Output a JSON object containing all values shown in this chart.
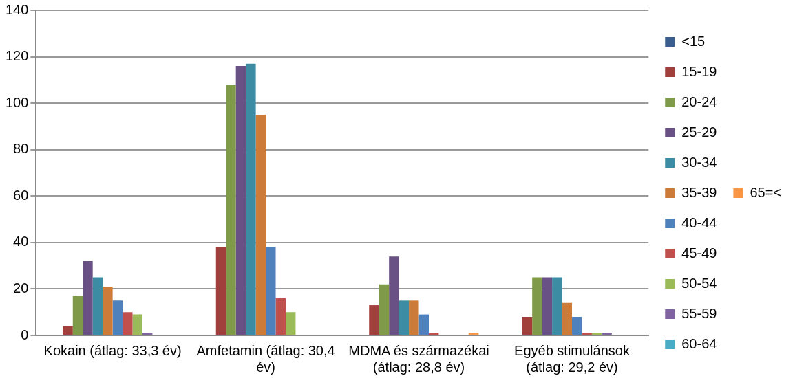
{
  "chart_data": {
    "type": "bar",
    "categories": [
      "Kokain (átlag: 33,3 év)",
      "Amfetamin (átlag: 30,4 év)",
      "MDMA és származékai (átlag: 28,8 év)",
      "Egyéb stimulánsok (átlag: 29,2 év)"
    ],
    "series": [
      {
        "name": "<15",
        "color": "#3a5f8f",
        "values": [
          0,
          0,
          0,
          0
        ]
      },
      {
        "name": "15-19",
        "color": "#a03f3c",
        "values": [
          4,
          38,
          13,
          8
        ]
      },
      {
        "name": "20-24",
        "color": "#7f9a48",
        "values": [
          17,
          108,
          22,
          25
        ]
      },
      {
        "name": "25-29",
        "color": "#695185",
        "values": [
          32,
          116,
          34,
          25
        ]
      },
      {
        "name": "30-34",
        "color": "#3c8da3",
        "values": [
          25,
          117,
          15,
          25
        ]
      },
      {
        "name": "35-39",
        "color": "#cc7b38",
        "values": [
          21,
          95,
          15,
          14
        ]
      },
      {
        "name": "40-44",
        "color": "#4f81bd",
        "values": [
          15,
          38,
          9,
          8
        ]
      },
      {
        "name": "45-49",
        "color": "#c0504d",
        "values": [
          10,
          16,
          1,
          1
        ]
      },
      {
        "name": "50-54",
        "color": "#9bbb59",
        "values": [
          9,
          10,
          0,
          1
        ]
      },
      {
        "name": "55-59",
        "color": "#8064a2",
        "values": [
          1,
          0,
          0,
          1
        ]
      },
      {
        "name": "60-64",
        "color": "#4bacc6",
        "values": [
          0,
          0,
          0,
          0
        ]
      },
      {
        "name": "65=<",
        "color": "#f79646",
        "values": [
          0,
          0,
          1,
          0
        ]
      }
    ],
    "ylim": [
      0,
      140
    ],
    "yticks": [
      0,
      20,
      40,
      60,
      80,
      100,
      120,
      140
    ],
    "grid": "y",
    "legend": "right"
  }
}
